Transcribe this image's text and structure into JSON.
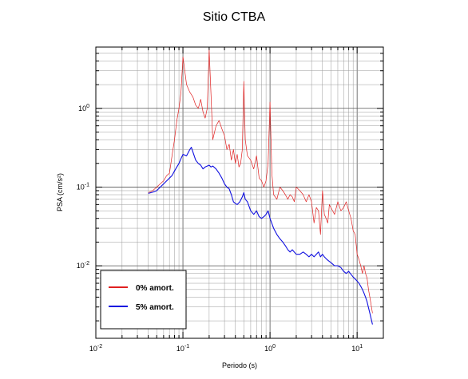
{
  "chart_data": {
    "type": "line",
    "title": "Sitio CTBA",
    "xlabel": "Periodo (s)",
    "ylabel": "PSA (cm/s²)",
    "xscale": "log",
    "yscale": "log",
    "xlim": [
      0.01,
      20
    ],
    "ylim": [
      0.0012,
      6
    ],
    "grid": true,
    "legend_position": "bottom-left",
    "x_ticks": [
      {
        "value": 0.01,
        "base": "10",
        "exp": "-2"
      },
      {
        "value": 0.1,
        "base": "10",
        "exp": "-1"
      },
      {
        "value": 1,
        "base": "10",
        "exp": "0"
      },
      {
        "value": 10,
        "base": "10",
        "exp": "1"
      }
    ],
    "y_ticks": [
      {
        "value": 0.01,
        "base": "10",
        "exp": "-2"
      },
      {
        "value": 0.1,
        "base": "10",
        "exp": "-1"
      },
      {
        "value": 1,
        "base": "10",
        "exp": "0"
      }
    ],
    "series": [
      {
        "name": "0% amort.",
        "color": "#e02020",
        "points": [
          [
            0.04,
            0.085
          ],
          [
            0.045,
            0.09
          ],
          [
            0.05,
            0.1
          ],
          [
            0.055,
            0.11
          ],
          [
            0.06,
            0.12
          ],
          [
            0.065,
            0.14
          ],
          [
            0.07,
            0.15
          ],
          [
            0.075,
            0.25
          ],
          [
            0.08,
            0.4
          ],
          [
            0.085,
            0.7
          ],
          [
            0.09,
            1.0
          ],
          [
            0.095,
            1.6
          ],
          [
            0.1,
            4.5
          ],
          [
            0.11,
            2.0
          ],
          [
            0.12,
            1.6
          ],
          [
            0.13,
            1.4
          ],
          [
            0.14,
            1.1
          ],
          [
            0.15,
            1.0
          ],
          [
            0.16,
            1.3
          ],
          [
            0.17,
            0.9
          ],
          [
            0.18,
            0.75
          ],
          [
            0.19,
            1.0
          ],
          [
            0.2,
            5.5
          ],
          [
            0.21,
            1.5
          ],
          [
            0.22,
            0.4
          ],
          [
            0.24,
            0.6
          ],
          [
            0.26,
            0.7
          ],
          [
            0.28,
            0.55
          ],
          [
            0.3,
            0.45
          ],
          [
            0.32,
            0.3
          ],
          [
            0.34,
            0.35
          ],
          [
            0.36,
            0.22
          ],
          [
            0.38,
            0.3
          ],
          [
            0.4,
            0.2
          ],
          [
            0.42,
            0.26
          ],
          [
            0.44,
            0.18
          ],
          [
            0.46,
            0.2
          ],
          [
            0.48,
            0.3
          ],
          [
            0.5,
            2.2
          ],
          [
            0.52,
            0.4
          ],
          [
            0.55,
            0.25
          ],
          [
            0.6,
            0.22
          ],
          [
            0.65,
            0.17
          ],
          [
            0.7,
            0.25
          ],
          [
            0.75,
            0.13
          ],
          [
            0.8,
            0.12
          ],
          [
            0.85,
            0.1
          ],
          [
            0.9,
            0.12
          ],
          [
            0.95,
            0.2
          ],
          [
            1.0,
            1.2
          ],
          [
            1.05,
            0.15
          ],
          [
            1.1,
            0.08
          ],
          [
            1.2,
            0.07
          ],
          [
            1.3,
            0.1
          ],
          [
            1.4,
            0.09
          ],
          [
            1.5,
            0.08
          ],
          [
            1.6,
            0.07
          ],
          [
            1.7,
            0.08
          ],
          [
            1.8,
            0.075
          ],
          [
            1.9,
            0.065
          ],
          [
            2.0,
            0.1
          ],
          [
            2.2,
            0.09
          ],
          [
            2.4,
            0.08
          ],
          [
            2.6,
            0.065
          ],
          [
            2.8,
            0.08
          ],
          [
            3.0,
            0.065
          ],
          [
            3.2,
            0.035
          ],
          [
            3.4,
            0.055
          ],
          [
            3.6,
            0.05
          ],
          [
            3.8,
            0.025
          ],
          [
            4.0,
            0.09
          ],
          [
            4.2,
            0.045
          ],
          [
            4.4,
            0.04
          ],
          [
            4.6,
            0.035
          ],
          [
            4.8,
            0.06
          ],
          [
            5.0,
            0.055
          ],
          [
            5.5,
            0.045
          ],
          [
            6.0,
            0.065
          ],
          [
            6.5,
            0.05
          ],
          [
            7.0,
            0.055
          ],
          [
            7.5,
            0.065
          ],
          [
            8.0,
            0.05
          ],
          [
            8.5,
            0.04
          ],
          [
            9.0,
            0.028
          ],
          [
            9.5,
            0.025
          ],
          [
            10.0,
            0.014
          ],
          [
            10.5,
            0.012
          ],
          [
            11.0,
            0.01
          ],
          [
            11.5,
            0.008
          ],
          [
            12.0,
            0.01
          ],
          [
            12.5,
            0.008
          ],
          [
            13.0,
            0.007
          ],
          [
            13.5,
            0.005
          ],
          [
            14.0,
            0.004
          ],
          [
            15.0,
            0.0025
          ]
        ]
      },
      {
        "name": "5% amort.",
        "color": "#1010e0",
        "points": [
          [
            0.04,
            0.083
          ],
          [
            0.045,
            0.086
          ],
          [
            0.05,
            0.09
          ],
          [
            0.055,
            0.1
          ],
          [
            0.06,
            0.11
          ],
          [
            0.065,
            0.12
          ],
          [
            0.07,
            0.13
          ],
          [
            0.075,
            0.14
          ],
          [
            0.08,
            0.16
          ],
          [
            0.085,
            0.18
          ],
          [
            0.09,
            0.2
          ],
          [
            0.095,
            0.23
          ],
          [
            0.1,
            0.26
          ],
          [
            0.11,
            0.25
          ],
          [
            0.12,
            0.3
          ],
          [
            0.125,
            0.32
          ],
          [
            0.13,
            0.28
          ],
          [
            0.14,
            0.22
          ],
          [
            0.15,
            0.2
          ],
          [
            0.16,
            0.19
          ],
          [
            0.17,
            0.17
          ],
          [
            0.18,
            0.18
          ],
          [
            0.19,
            0.185
          ],
          [
            0.2,
            0.19
          ],
          [
            0.21,
            0.18
          ],
          [
            0.22,
            0.185
          ],
          [
            0.24,
            0.17
          ],
          [
            0.26,
            0.15
          ],
          [
            0.28,
            0.13
          ],
          [
            0.3,
            0.11
          ],
          [
            0.32,
            0.1
          ],
          [
            0.34,
            0.095
          ],
          [
            0.36,
            0.08
          ],
          [
            0.38,
            0.065
          ],
          [
            0.4,
            0.062
          ],
          [
            0.42,
            0.06
          ],
          [
            0.45,
            0.065
          ],
          [
            0.48,
            0.075
          ],
          [
            0.5,
            0.085
          ],
          [
            0.52,
            0.07
          ],
          [
            0.55,
            0.065
          ],
          [
            0.6,
            0.05
          ],
          [
            0.65,
            0.045
          ],
          [
            0.7,
            0.05
          ],
          [
            0.75,
            0.042
          ],
          [
            0.8,
            0.04
          ],
          [
            0.85,
            0.042
          ],
          [
            0.9,
            0.045
          ],
          [
            0.95,
            0.05
          ],
          [
            1.0,
            0.04
          ],
          [
            1.1,
            0.03
          ],
          [
            1.2,
            0.025
          ],
          [
            1.3,
            0.022
          ],
          [
            1.4,
            0.02
          ],
          [
            1.5,
            0.018
          ],
          [
            1.6,
            0.016
          ],
          [
            1.7,
            0.015
          ],
          [
            1.8,
            0.016
          ],
          [
            2.0,
            0.014
          ],
          [
            2.2,
            0.014
          ],
          [
            2.4,
            0.015
          ],
          [
            2.6,
            0.014
          ],
          [
            2.8,
            0.013
          ],
          [
            3.0,
            0.014
          ],
          [
            3.2,
            0.013
          ],
          [
            3.4,
            0.014
          ],
          [
            3.6,
            0.015
          ],
          [
            3.8,
            0.013
          ],
          [
            4.0,
            0.014
          ],
          [
            4.2,
            0.013
          ],
          [
            4.5,
            0.012
          ],
          [
            5.0,
            0.011
          ],
          [
            5.5,
            0.01
          ],
          [
            6.0,
            0.01
          ],
          [
            6.5,
            0.0095
          ],
          [
            7.0,
            0.0085
          ],
          [
            7.5,
            0.008
          ],
          [
            8.0,
            0.0085
          ],
          [
            8.5,
            0.0078
          ],
          [
            9.0,
            0.0072
          ],
          [
            9.5,
            0.0068
          ],
          [
            10.0,
            0.0064
          ],
          [
            10.5,
            0.006
          ],
          [
            11.0,
            0.0055
          ],
          [
            11.5,
            0.005
          ],
          [
            12.0,
            0.0045
          ],
          [
            12.5,
            0.004
          ],
          [
            13.0,
            0.0035
          ],
          [
            14.0,
            0.0025
          ],
          [
            15.0,
            0.0018
          ]
        ]
      }
    ]
  }
}
